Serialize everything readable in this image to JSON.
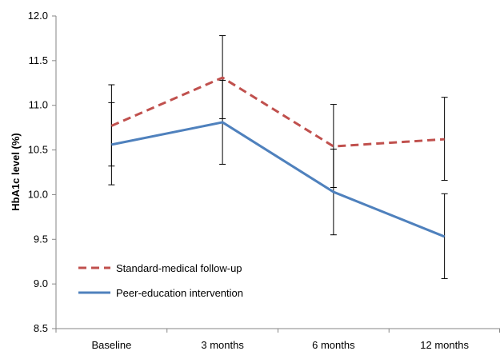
{
  "chart_data": {
    "type": "line",
    "categories": [
      "Baseline",
      "3 months",
      "6 months",
      "12 months"
    ],
    "ylabel": "HbA1c level (%)",
    "xlabel": "",
    "ylim": [
      8.5,
      12.0
    ],
    "yticks": [
      "8.5",
      "9.0",
      "9.5",
      "10.0",
      "10.5",
      "11.0",
      "11.5",
      "12.0"
    ],
    "grid": false,
    "legend": "bottom-left",
    "series": [
      {
        "name": "Standard-medical follow-up",
        "color": "#C0504D",
        "dash": "dashed",
        "values": [
          10.77,
          11.31,
          10.54,
          10.62
        ],
        "upper": [
          11.23,
          11.78,
          11.01,
          11.09
        ],
        "lower": [
          10.32,
          10.85,
          10.08,
          10.16
        ]
      },
      {
        "name": "Peer-education intervention",
        "color": "#4F81BD",
        "dash": "solid",
        "values": [
          10.56,
          10.81,
          10.03,
          9.53
        ],
        "upper": [
          11.03,
          11.28,
          10.51,
          10.01
        ],
        "lower": [
          10.11,
          10.34,
          9.55,
          9.06
        ]
      }
    ]
  }
}
